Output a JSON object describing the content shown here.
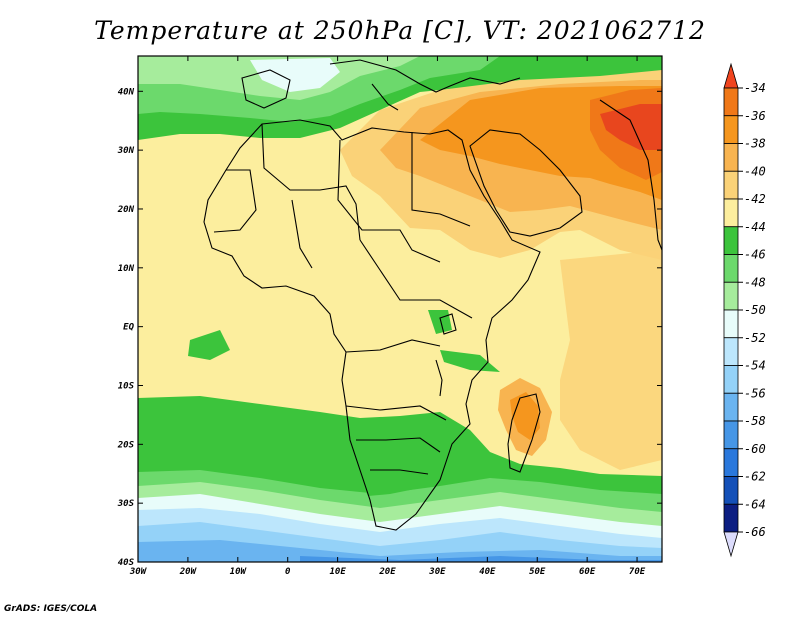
{
  "title": "Temperature at 250hPa [C], VT: 2021062712",
  "credit": "GrADS: IGES/COLA",
  "map": {
    "lon_range": [
      -30,
      75
    ],
    "lat_range": [
      -40,
      46
    ],
    "lon_ticks": [
      {
        "value": -30,
        "label": "30W"
      },
      {
        "value": -20,
        "label": "20W"
      },
      {
        "value": -10,
        "label": "10W"
      },
      {
        "value": 0,
        "label": "0"
      },
      {
        "value": 10,
        "label": "10E"
      },
      {
        "value": 20,
        "label": "20E"
      },
      {
        "value": 30,
        "label": "30E"
      },
      {
        "value": 40,
        "label": "40E"
      },
      {
        "value": 50,
        "label": "50E"
      },
      {
        "value": 60,
        "label": "60E"
      },
      {
        "value": 70,
        "label": "70E"
      }
    ],
    "lat_ticks": [
      {
        "value": 40,
        "label": "40N"
      },
      {
        "value": 30,
        "label": "30N"
      },
      {
        "value": 20,
        "label": "20N"
      },
      {
        "value": 10,
        "label": "10N"
      },
      {
        "value": 0,
        "label": "EQ"
      },
      {
        "value": -10,
        "label": "10S"
      },
      {
        "value": -20,
        "label": "20S"
      },
      {
        "value": -30,
        "label": "30S"
      },
      {
        "value": -40,
        "label": "40S"
      }
    ]
  },
  "colorbar": {
    "levels": [
      {
        "label": "-34",
        "color": "#e8461e"
      },
      {
        "label": "-36",
        "color": "#f07818"
      },
      {
        "label": "-38",
        "color": "#f5961e"
      },
      {
        "label": "-40",
        "color": "#f8b450"
      },
      {
        "label": "-42",
        "color": "#fad278"
      },
      {
        "label": "-44",
        "color": "#fcee9e"
      },
      {
        "label": "-46",
        "color": "#3cc43c"
      },
      {
        "label": "-48",
        "color": "#6cd96c"
      },
      {
        "label": "-50",
        "color": "#a6ec9c"
      },
      {
        "label": "-52",
        "color": "#e8fcfa"
      },
      {
        "label": "-54",
        "color": "#bce6fc"
      },
      {
        "label": "-56",
        "color": "#94d2f8"
      },
      {
        "label": "-58",
        "color": "#6ab4f0"
      },
      {
        "label": "-60",
        "color": "#4696e6"
      },
      {
        "label": "-62",
        "color": "#2a78dc"
      },
      {
        "label": "-64",
        "color": "#1450b8"
      },
      {
        "label": "-66",
        "color": "#0c1e82"
      }
    ],
    "top_color": "#f0441e",
    "bottom_color": "#dcdcfc"
  }
}
